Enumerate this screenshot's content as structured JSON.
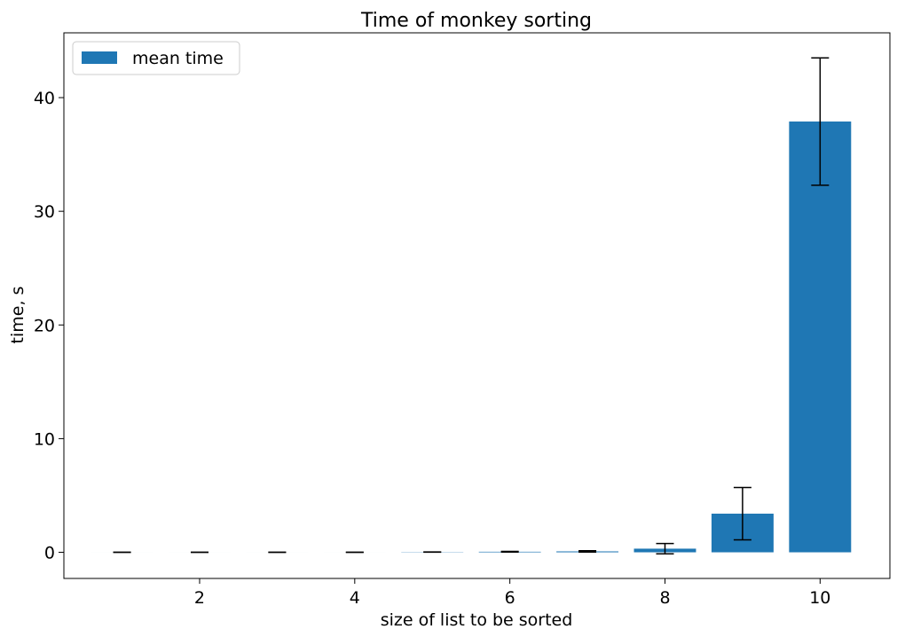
{
  "chart_data": {
    "type": "bar",
    "title": "Time of monkey sorting",
    "xlabel": "size of list to be sorted",
    "ylabel": "time, s",
    "legend": {
      "entries": [
        "mean time"
      ],
      "placement": "top-left"
    },
    "x": [
      1,
      2,
      3,
      4,
      5,
      6,
      7,
      8,
      9,
      10
    ],
    "series": [
      {
        "name": "mean time",
        "color": "#1f77b4",
        "values": [
          0.0,
          0.0,
          0.0,
          0.0,
          0.02,
          0.05,
          0.08,
          0.32,
          3.4,
          37.9
        ],
        "error": [
          0.0,
          0.0,
          0.0,
          0.0,
          0.01,
          0.03,
          0.06,
          0.45,
          2.3,
          5.6
        ]
      }
    ],
    "xlim": [
      0.25,
      10.9
    ],
    "ylim": [
      -2.3,
      45.7
    ],
    "xticks": [
      2,
      4,
      6,
      8,
      10
    ],
    "yticks": [
      0,
      10,
      20,
      30,
      40
    ],
    "grid": false
  }
}
